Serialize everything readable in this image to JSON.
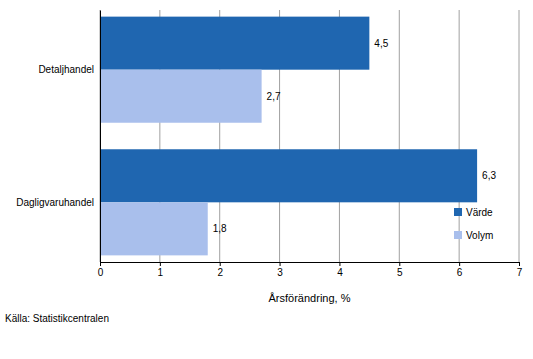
{
  "chart_data": {
    "type": "bar",
    "orientation": "horizontal",
    "categories": [
      "Detaljhandel",
      "Dagligvaruhandel"
    ],
    "series": [
      {
        "name": "Värde",
        "color": "#1f66b0",
        "values": [
          4.5,
          6.3
        ],
        "value_labels": [
          "4,5",
          "6,3"
        ]
      },
      {
        "name": "Volym",
        "color": "#a9bfec",
        "values": [
          2.7,
          1.8
        ],
        "value_labels": [
          "2,7",
          "1,8"
        ]
      }
    ],
    "xlim": [
      0,
      7
    ],
    "xticks": [
      0,
      1,
      2,
      3,
      4,
      5,
      6,
      7
    ],
    "x_label": "Årsförändring, %",
    "source": "Källa: Statistikcentralen",
    "grid": true,
    "legend": "lower right",
    "data_labels": true
  }
}
